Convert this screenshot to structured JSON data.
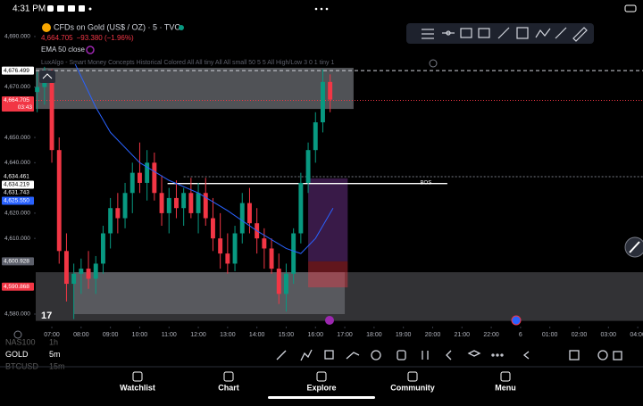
{
  "status_bar": {
    "time": "4:31 PM"
  },
  "header": {
    "symbol": "CFDs on Gold (US$ / OZ) · 5 · TVC",
    "price": "4,664.705",
    "change": "−93.380 (−1.96%)",
    "ema_label": "EMA 50 close",
    "indicator_label": "LuxAlgo - Smart Money Concepts Historical Colored All All tiny All All small 50 5 5 All High/Low 3 0 1 tiny 1"
  },
  "chart_data": {
    "type": "candlestick",
    "up_color": "#089981",
    "down_color": "#f23645",
    "x": [
      -0.5,
      -0.25,
      0,
      0.25,
      0.5,
      0.75,
      1,
      1.25,
      1.5,
      1.75,
      2,
      2.25,
      2.5,
      2.75,
      3,
      3.25,
      3.5,
      3.75,
      4,
      4.25,
      4.5,
      4.75,
      5,
      5.25,
      5.5,
      5.75,
      6,
      6.25,
      6.5,
      6.75,
      7,
      7.25,
      7.5,
      7.75,
      8,
      8.25,
      8.5,
      8.75,
      9,
      9.25,
      9.5
    ],
    "open": [
      4668,
      4670,
      4674,
      4645,
      4605,
      4592,
      4596,
      4598,
      4594,
      4600,
      4612,
      4622,
      4618,
      4628,
      4636,
      4632,
      4640,
      4628,
      4620,
      4626,
      4622,
      4628,
      4620,
      4628,
      4618,
      4610,
      4604,
      4600,
      4612,
      4624,
      4616,
      4610,
      4606,
      4598,
      4588,
      4596,
      4612,
      4632,
      4645,
      4656,
      4672
    ],
    "high": [
      4676,
      4678,
      4677,
      4650,
      4612,
      4600,
      4602,
      4605,
      4603,
      4615,
      4626,
      4628,
      4632,
      4640,
      4648,
      4645,
      4644,
      4635,
      4630,
      4633,
      4630,
      4634,
      4632,
      4634,
      4626,
      4620,
      4612,
      4615,
      4628,
      4630,
      4622,
      4614,
      4610,
      4604,
      4600,
      4614,
      4636,
      4648,
      4660,
      4677,
      4675
    ],
    "low": [
      4660,
      4663,
      4640,
      4600,
      4585,
      4578,
      4588,
      4590,
      4588,
      4596,
      4606,
      4612,
      4614,
      4620,
      4628,
      4625,
      4625,
      4615,
      4612,
      4618,
      4615,
      4618,
      4612,
      4615,
      4605,
      4598,
      4596,
      4597,
      4608,
      4612,
      4604,
      4598,
      4596,
      4584,
      4581,
      4592,
      4608,
      4628,
      4640,
      4652,
      4660
    ],
    "close": [
      4670,
      4674,
      4645,
      4605,
      4592,
      4596,
      4598,
      4594,
      4600,
      4612,
      4622,
      4618,
      4628,
      4636,
      4632,
      4640,
      4628,
      4620,
      4626,
      4622,
      4628,
      4620,
      4628,
      4618,
      4610,
      4604,
      4600,
      4612,
      4624,
      4616,
      4610,
      4606,
      4598,
      4588,
      4596,
      4612,
      4632,
      4645,
      4656,
      4672,
      4665
    ],
    "ema": {
      "color": "#2962ff",
      "x": [
        0.8,
        1.5,
        2,
        3,
        4,
        5,
        6,
        7,
        8,
        8.5,
        9,
        9.6
      ],
      "values": [
        4679,
        4662,
        4652,
        4640,
        4633,
        4628,
        4621,
        4613,
        4606,
        4604,
        4610,
        4622
      ]
    },
    "xlim": [
      -0.55,
      20.18
    ],
    "ylim": [
      4575.4,
      4696.7
    ],
    "xticks": [
      {
        "value": 0,
        "label": "07:00"
      },
      {
        "value": 1,
        "label": "08:00"
      },
      {
        "value": 2,
        "label": "09:00"
      },
      {
        "value": 3,
        "label": "10:00"
      },
      {
        "value": 4,
        "label": "11:00"
      },
      {
        "value": 5,
        "label": "12:00"
      },
      {
        "value": 6,
        "label": "13:00"
      },
      {
        "value": 7,
        "label": "14:00"
      },
      {
        "value": 8,
        "label": "15:00"
      },
      {
        "value": 9,
        "label": "16:00"
      },
      {
        "value": 10,
        "label": "17:00"
      },
      {
        "value": 11,
        "label": "18:00"
      },
      {
        "value": 12,
        "label": "19:00"
      },
      {
        "value": 13,
        "label": "20:00"
      },
      {
        "value": 14,
        "label": "21:00"
      },
      {
        "value": 15,
        "label": "22:00"
      },
      {
        "value": 16,
        "label": "6"
      },
      {
        "value": 17,
        "label": "01:00"
      },
      {
        "value": 18,
        "label": "02:00"
      },
      {
        "value": 19,
        "label": "03:00"
      },
      {
        "value": 20,
        "label": "04:00"
      }
    ],
    "yticks": [
      {
        "value": 4690,
        "label": "4,690.000"
      },
      {
        "value": 4670,
        "label": "4,670.000"
      },
      {
        "value": 4650,
        "label": "4,650.000"
      },
      {
        "value": 4640,
        "label": "4,640.000"
      },
      {
        "value": 4620,
        "label": "4,620.000"
      },
      {
        "value": 4610,
        "label": "4,610.000"
      },
      {
        "value": 4580,
        "label": "4,580.000"
      }
    ],
    "price_badges": [
      {
        "value": 4676.499,
        "label": "4,676.499",
        "color": "#ffffff",
        "text_color": "#000000"
      },
      {
        "value": 4664.705,
        "label": "4,664.705",
        "sublabel": "03:43",
        "color": "#f23645",
        "text_color": "#ffffff"
      },
      {
        "value": 4634.461,
        "label": "4,634.461",
        "color": "#000000",
        "text_color": "#ffffff"
      },
      {
        "value": 4634.219,
        "label": "4,634.219",
        "color": "#ffffff",
        "text_color": "#000000"
      },
      {
        "value": 4631.743,
        "label": "4,631.743",
        "color": "#000000",
        "text_color": "#ffffff"
      },
      {
        "value": 4625.55,
        "label": "4,625.550",
        "color": "#2962ff",
        "text_color": "#ffffff"
      },
      {
        "value": 4600.928,
        "label": "4,600.928",
        "color": "#5d606b",
        "text_color": "#ffffff"
      },
      {
        "value": 4590.868,
        "label": "4,590.868",
        "color": "#f23645",
        "text_color": "#ffffff"
      }
    ],
    "zones": [
      {
        "x": [
          -0.55,
          10.3
        ],
        "y": [
          4661.3,
          4677.6
        ],
        "color": "rgba(178,181,190,0.45)"
      },
      {
        "x": [
          -0.55,
          20.18
        ],
        "y": [
          4577.3,
          4596.6
        ],
        "color": "rgba(178,181,190,0.28)"
      },
      {
        "x": [
          0.75,
          10
        ],
        "y": [
          4580,
          4596.6
        ],
        "color": "rgba(178,181,190,0.3)"
      },
      {
        "x": [
          8.75,
          10.1
        ],
        "y": [
          4600.9,
          4633.8
        ],
        "color": "rgba(126,58,160,0.45)"
      },
      {
        "x": [
          8.75,
          10.1
        ],
        "y": [
          4590.6,
          4600.9
        ],
        "color": "rgba(242,54,69,0.4)"
      }
    ],
    "levels": [
      {
        "value": 4676.499,
        "x": [
          -0.55,
          20.18
        ],
        "color": "#d1d4dc",
        "dash": "4 3"
      },
      {
        "value": 4664.705,
        "x": [
          -0.55,
          20.18
        ],
        "color": "#f23645",
        "dash": "1 2"
      },
      {
        "value": 4634.461,
        "x": [
          4.5,
          20.18
        ],
        "color": "#787b86",
        "dash": "2 2"
      }
    ],
    "bos": {
      "label": "BOS",
      "value": 4631.743,
      "x": [
        3.95,
        13.5
      ]
    }
  },
  "watchlist": [
    {
      "symbol": "NAS100",
      "interval": "1h"
    },
    {
      "symbol": "GOLD",
      "interval": "5m"
    },
    {
      "symbol": "BTCUSD",
      "interval": "15m"
    }
  ],
  "nav": [
    "Watchlist",
    "Chart",
    "Explore",
    "Community",
    "Menu"
  ]
}
